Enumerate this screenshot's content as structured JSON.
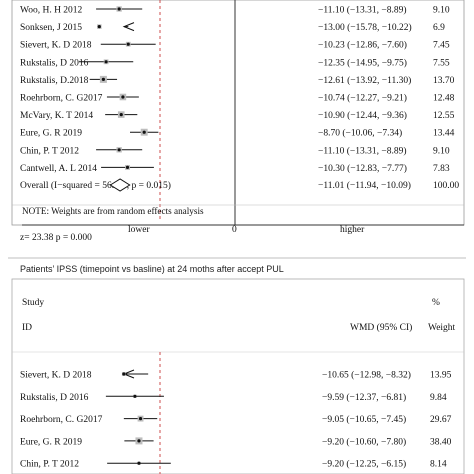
{
  "chart_data": [
    {
      "type": "forest",
      "rows": [
        {
          "label": "Woo, H. H  2012",
          "wmd": -11.1,
          "ci": [
            -13.31,
            -8.89
          ],
          "ci_text": "−11.10 (−13.31, −8.89)",
          "weight": "9.10"
        },
        {
          "label": "Sonksen, J 2015",
          "wmd": -13.0,
          "ci": [
            -15.78,
            -10.22
          ],
          "ci_text": "−13.00 (−15.78, −10.22)",
          "weight": "6.9",
          "ci_arrow_left": true
        },
        {
          "label": "Sievert, K. D 2018",
          "wmd": -10.23,
          "ci": [
            -12.86,
            -7.6
          ],
          "ci_text": "−10.23 (−12.86, −7.60)",
          "weight": "7.45"
        },
        {
          "label": "Rukstalis, D 2016",
          "wmd": -12.35,
          "ci": [
            -14.95,
            -9.75
          ],
          "ci_text": "−12.35 (−14.95, −9.75)",
          "weight": "7.55"
        },
        {
          "label": "Rukstalis, D.2018",
          "wmd": -12.61,
          "ci": [
            -13.92,
            -11.3
          ],
          "ci_text": "−12.61 (−13.92, −11.30)",
          "weight": "13.70"
        },
        {
          "label": "Roehrborn, C. G2017",
          "wmd": -10.74,
          "ci": [
            -12.27,
            -9.21
          ],
          "ci_text": "−10.74 (−12.27, −9.21)",
          "weight": "12.48"
        },
        {
          "label": "McVary, K. T 2014",
          "wmd": -10.9,
          "ci": [
            -12.44,
            -9.36
          ],
          "ci_text": "−10.90 (−12.44, −9.36)",
          "weight": "12.55"
        },
        {
          "label": "Eure, G. R 2019",
          "wmd": -8.7,
          "ci": [
            -10.06,
            -7.34
          ],
          "ci_text": "−8.70 (−10.06, −7.34)",
          "weight": "13.44"
        },
        {
          "label": "Chin, P. T 2012",
          "wmd": -11.1,
          "ci": [
            -13.31,
            -8.89
          ],
          "ci_text": "−11.10 (−13.31, −8.89)",
          "weight": "9.10"
        },
        {
          "label": "Cantwell, A. L 2014",
          "wmd": -10.3,
          "ci": [
            -12.83,
            -7.77
          ],
          "ci_text": "−10.30 (−12.83, −7.77)",
          "weight": "7.83"
        }
      ],
      "overall": {
        "label": "Overall  (I−squared = 56.3%, p = 0.015)",
        "wmd": -11.01,
        "ci": [
          -11.94,
          -10.09
        ],
        "ci_text": "−11.01 (−11.94, −10.09)",
        "weight": "100.00"
      },
      "note": "NOTE: Weights are from random effects analysis",
      "axis": {
        "left_label": "lower",
        "zero_label": "0",
        "right_label": "higher"
      },
      "z_text": "z=  23.38 p = 0.000",
      "xlim": [
        -16,
        16
      ]
    },
    {
      "type": "forest",
      "title": "Patients’  IPSS (timepoint vs basline) at 24 moths after accept PUL",
      "header": {
        "study": "Study",
        "id": "ID",
        "wmd": "WMD (95% CI)",
        "pct": "%",
        "weight": "Weight"
      },
      "rows": [
        {
          "label": "Sievert, K. D 2018",
          "wmd": -10.65,
          "ci": [
            -12.98,
            -8.32
          ],
          "ci_text": "−10.65 (−12.98, −8.32)",
          "weight": "13.95",
          "ci_arrow_left": true
        },
        {
          "label": "Rukstalis, D 2016",
          "wmd": -9.59,
          "ci": [
            -12.37,
            -6.81
          ],
          "ci_text": "−9.59 (−12.37, −6.81)",
          "weight": "9.84"
        },
        {
          "label": "Roehrborn, C. G2017",
          "wmd": -9.05,
          "ci": [
            -10.65,
            -7.45
          ],
          "ci_text": "−9.05 (−10.65, −7.45)",
          "weight": "29.67"
        },
        {
          "label": "Eure, G. R 2019",
          "wmd": -9.2,
          "ci": [
            -10.6,
            -7.8
          ],
          "ci_text": "−9.20 (−10.60, −7.80)",
          "weight": "38.40"
        },
        {
          "label": "Chin, P. T 2012",
          "wmd": -9.2,
          "ci": [
            -12.25,
            -6.15
          ],
          "ci_text": "−9.20 (−12.25, −6.15)",
          "weight": "8.14"
        }
      ],
      "xlim": [
        -16,
        16
      ]
    }
  ]
}
